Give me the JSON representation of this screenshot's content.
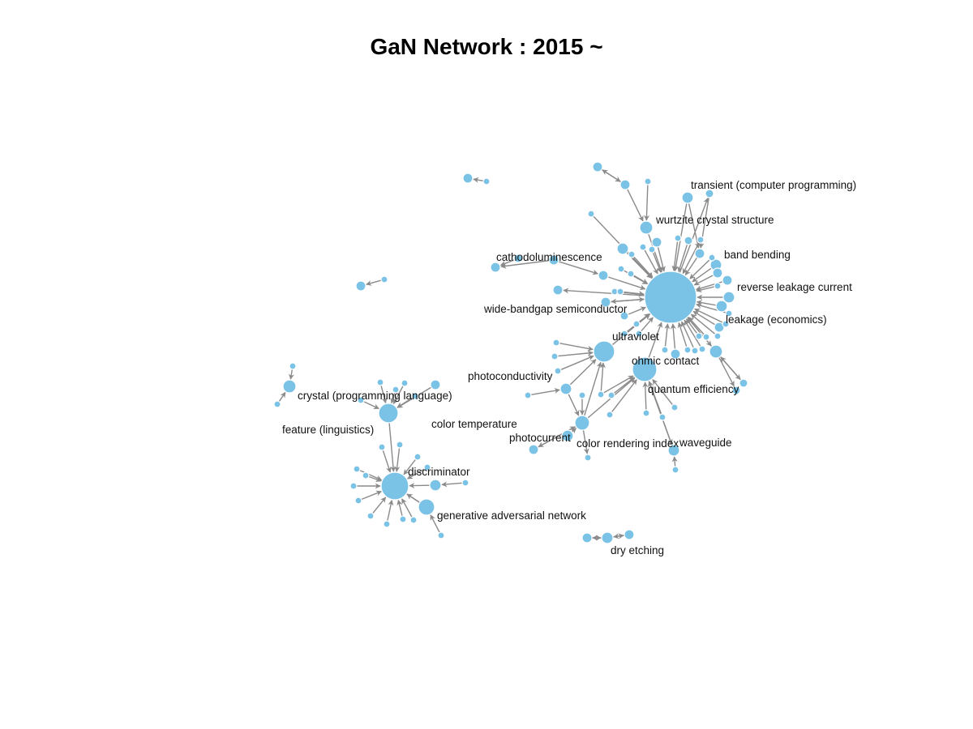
{
  "title": "GaN Network : 2015 ~",
  "colors": {
    "node": "#7bc3e6",
    "edge": "#8a8a8a",
    "background": "#ffffff"
  },
  "labels": {
    "transient": "transient (computer programming)",
    "wurtzite": "wurtzite crystal structure",
    "band_bending": "band bending",
    "cathodoluminescence": "cathodoluminescence",
    "reverse_leakage": "reverse leakage current",
    "wide_bandgap": "wide-bandgap semiconductor",
    "leakage": "leakage (economics)",
    "ultraviolet": "ultraviolet",
    "ohmic": "ohmic contact",
    "photoconductivity": "photoconductivity",
    "quantum_eff": "quantum efficiency",
    "crystal_prog": "crystal (programming language)",
    "color_temp": "color temperature",
    "feature_ling": "feature (linguistics)",
    "photocurrent": "photocurrent",
    "cri": "color rendering index",
    "waveguide": "waveguide",
    "discriminator": "discriminator",
    "gan_network": "generative adversarial network",
    "dry_etching": "dry etching"
  }
}
